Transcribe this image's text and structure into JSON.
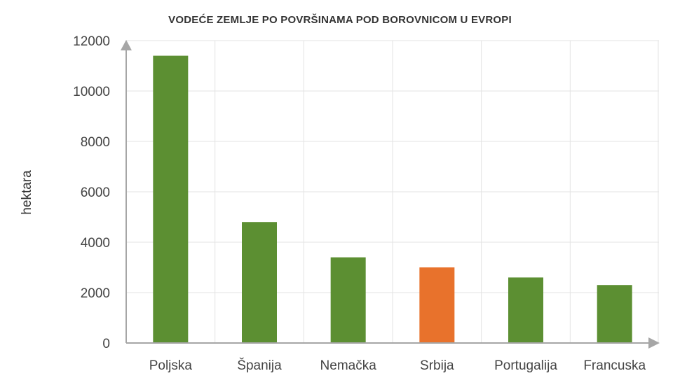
{
  "chart_data": {
    "type": "bar",
    "title": "VODEĆE ZEMLJE PO POVRŠINAMA POD BOROVNICOM U EVROPI",
    "xlabel": "",
    "ylabel": "hektara",
    "ylim": [
      0,
      12000
    ],
    "yticks": [
      "0",
      "2000",
      "4000",
      "6000",
      "8000",
      "10000",
      "12000"
    ],
    "categories": [
      "Poljska",
      "Španija",
      "Nemačka",
      "Srbija",
      "Portugalija",
      "Francuska"
    ],
    "values": [
      11400,
      4800,
      3400,
      3000,
      2600,
      2300
    ],
    "bar_colors": [
      "#5c8f32",
      "#5c8f32",
      "#5c8f32",
      "#e8722c",
      "#5c8f32",
      "#5c8f32"
    ],
    "grid": true,
    "legend": "none"
  }
}
